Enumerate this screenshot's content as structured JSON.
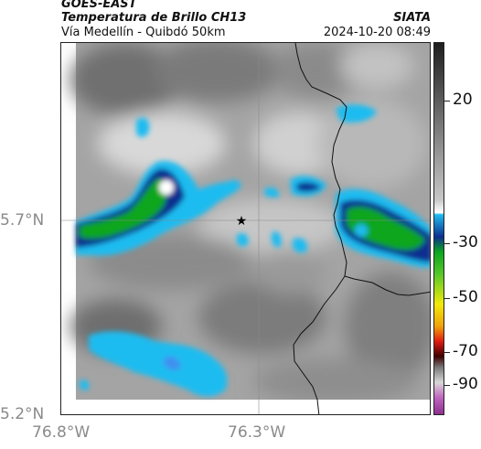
{
  "header": {
    "satellite": "GOES-EAST",
    "product": "Temperatura de Brillo CH13",
    "route": "Vía Medellín - Quibdó 50km",
    "org": "SIATA",
    "datetime": "2024-10-20 08:49"
  },
  "map": {
    "lat_labels": [
      "5.7°N",
      "5.2°N"
    ],
    "lon_labels": [
      "76.8°W",
      "76.3°W"
    ],
    "marker_icon": "star-icon",
    "gridlines": true
  },
  "colorbar": {
    "ticks": [
      "20",
      "-30",
      "-50",
      "-70",
      "-90"
    ],
    "palette": [
      "#1e1e1e",
      "#9a9a9a",
      "#ffffff",
      "#0e2f8f",
      "#1fbcf0",
      "#0aa61e",
      "#f2ea0a",
      "#e01b12",
      "#3d0000",
      "#c066c0"
    ]
  }
}
